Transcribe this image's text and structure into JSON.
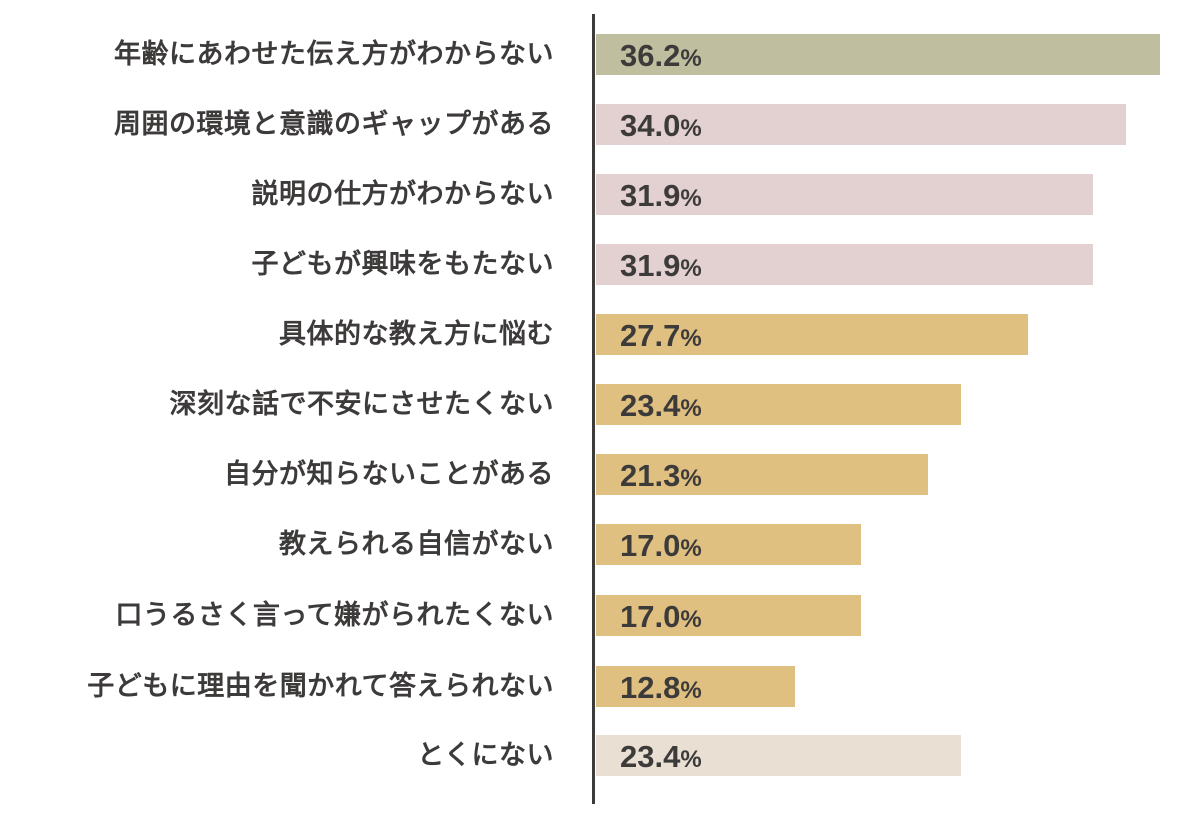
{
  "chart_data": {
    "type": "bar",
    "orientation": "horizontal",
    "title": "",
    "xlabel": "",
    "ylabel": "",
    "xlim": [
      0,
      37
    ],
    "grid": false,
    "legend": null,
    "unit": "%",
    "categories": [
      "年齢にあわせた伝え方がわからない",
      "周囲の環境と意識のギャップがある",
      "説明の仕方がわからない",
      "子どもが興味をもたない",
      "具体的な教え方に悩む",
      "深刻な話で不安にさせたくない",
      "自分が知らないことがある",
      "教えられる自信がない",
      "口うるさく言って嫌がられたくない",
      "子どもに理由を聞かれて答えられない",
      "とくにない"
    ],
    "values": [
      36.2,
      34.0,
      31.9,
      31.9,
      27.7,
      23.4,
      21.3,
      17.0,
      17.0,
      12.8,
      23.4
    ],
    "value_labels": [
      "36.2",
      "34.0",
      "31.9",
      "31.9",
      "27.7",
      "23.4",
      "21.3",
      "17.0",
      "17.0",
      "12.8",
      "23.4"
    ],
    "bar_colors": [
      "#bfbe9f",
      "#e3d1d1",
      "#e3d1d1",
      "#e3d1d1",
      "#dfc081",
      "#dfc081",
      "#dfc081",
      "#dfc081",
      "#dfc081",
      "#dfc081",
      "#e9dfd3"
    ]
  },
  "rows": [
    {
      "label": "年齢にあわせた伝え方がわからない",
      "value": "36.2",
      "pct": "%"
    },
    {
      "label": "周囲の環境と意識のギャップがある",
      "value": "34.0",
      "pct": "%"
    },
    {
      "label": "説明の仕方がわからない",
      "value": "31.9",
      "pct": "%"
    },
    {
      "label": "子どもが興味をもたない",
      "value": "31.9",
      "pct": "%"
    },
    {
      "label": "具体的な教え方に悩む",
      "value": "27.7",
      "pct": "%"
    },
    {
      "label": "深刻な話で不安にさせたくない",
      "value": "23.4",
      "pct": "%"
    },
    {
      "label": "自分が知らないことがある",
      "value": "21.3",
      "pct": "%"
    },
    {
      "label": "教えられる自信がない",
      "value": "17.0",
      "pct": "%"
    },
    {
      "label": "口うるさく言って嫌がられたくない",
      "value": "17.0",
      "pct": "%"
    },
    {
      "label": "子どもに理由を聞かれて答えられない",
      "value": "12.8",
      "pct": "%"
    },
    {
      "label": "とくにない",
      "value": "23.4",
      "pct": "%"
    }
  ]
}
